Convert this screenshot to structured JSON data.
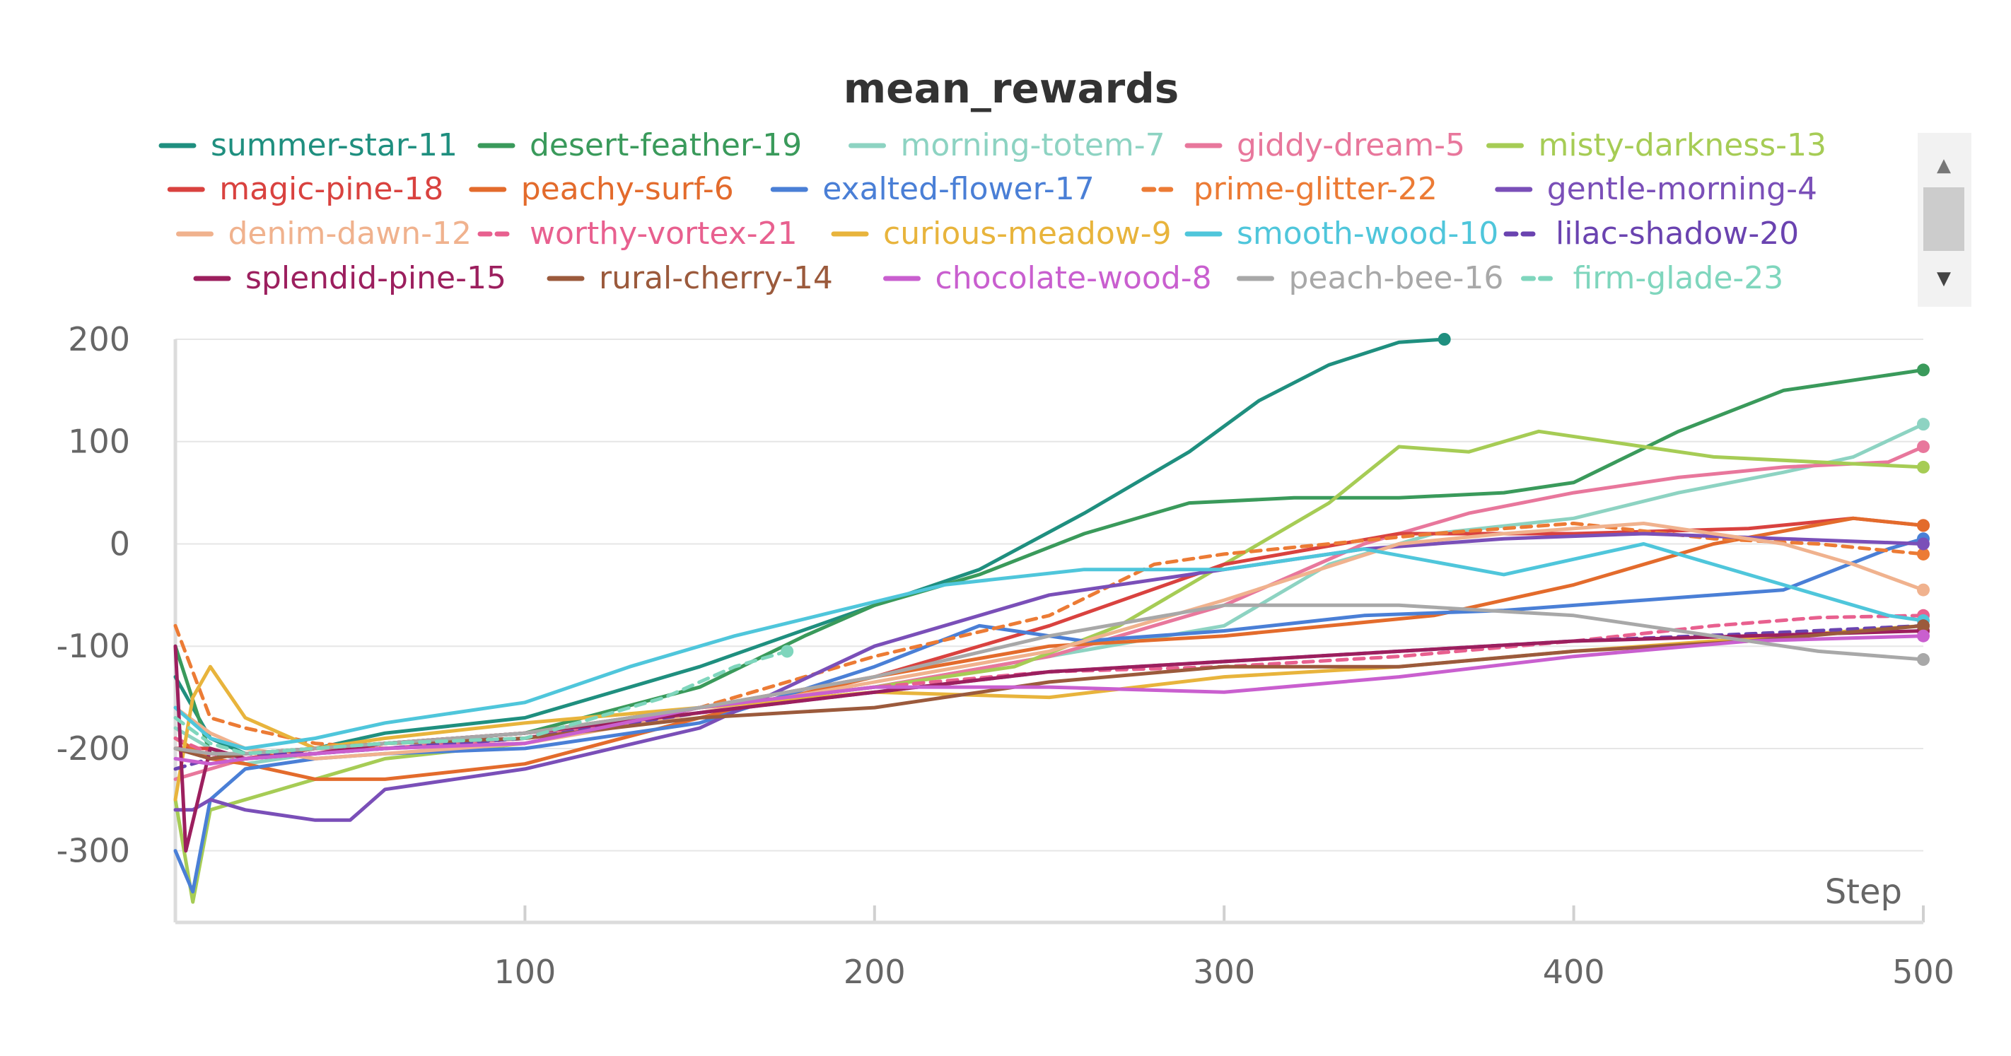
{
  "chart_data": {
    "type": "line",
    "title": "mean_rewards",
    "xlabel": "Step",
    "ylabel": "",
    "xlim": [
      0,
      500
    ],
    "ylim": [
      -370,
      200
    ],
    "xticks": [
      100,
      200,
      300,
      400,
      500
    ],
    "yticks": [
      200,
      100,
      0,
      -100,
      -200,
      -300
    ],
    "grid": true,
    "legend_position": "top",
    "series": [
      {
        "name": "summer-star-11",
        "color": "#1f8f7f",
        "dash": false,
        "x": [
          0,
          10,
          20,
          40,
          60,
          100,
          150,
          175,
          200,
          230,
          260,
          290,
          310,
          330,
          350,
          363
        ],
        "y": [
          -130,
          -190,
          -205,
          -200,
          -185,
          -170,
          -120,
          -90,
          -60,
          -25,
          30,
          90,
          140,
          175,
          197,
          200
        ]
      },
      {
        "name": "desert-feather-19",
        "color": "#3a9a5b",
        "dash": false,
        "x": [
          0,
          10,
          20,
          40,
          60,
          100,
          150,
          180,
          200,
          230,
          260,
          290,
          320,
          350,
          380,
          400,
          430,
          460,
          500
        ],
        "y": [
          -100,
          -205,
          -210,
          -200,
          -195,
          -185,
          -140,
          -90,
          -60,
          -30,
          10,
          40,
          45,
          45,
          50,
          60,
          110,
          150,
          170
        ]
      },
      {
        "name": "morning-totem-7",
        "color": "#8dd3c2",
        "dash": false,
        "x": [
          0,
          10,
          20,
          40,
          60,
          100,
          150,
          200,
          250,
          300,
          330,
          360,
          400,
          430,
          460,
          480,
          500
        ],
        "y": [
          -180,
          -200,
          -215,
          -205,
          -200,
          -190,
          -160,
          -140,
          -110,
          -80,
          -20,
          10,
          25,
          50,
          70,
          85,
          117
        ]
      },
      {
        "name": "giddy-dream-5",
        "color": "#e8779c",
        "dash": false,
        "x": [
          0,
          10,
          20,
          40,
          60,
          100,
          150,
          200,
          250,
          300,
          340,
          370,
          400,
          430,
          460,
          490,
          500
        ],
        "y": [
          -230,
          -220,
          -210,
          -200,
          -200,
          -190,
          -160,
          -140,
          -110,
          -60,
          0,
          30,
          50,
          65,
          75,
          80,
          95
        ]
      },
      {
        "name": "misty-darkness-13",
        "color": "#a6cc55",
        "dash": false,
        "x": [
          0,
          5,
          10,
          20,
          40,
          60,
          100,
          150,
          200,
          240,
          270,
          300,
          330,
          350,
          370,
          390,
          420,
          440,
          470,
          500
        ],
        "y": [
          -250,
          -350,
          -260,
          -250,
          -230,
          -210,
          -195,
          -160,
          -140,
          -120,
          -80,
          -20,
          40,
          95,
          90,
          110,
          95,
          85,
          80,
          75
        ]
      },
      {
        "name": "magic-pine-18",
        "color": "#d9423f",
        "dash": false,
        "x": [
          0,
          10,
          20,
          40,
          60,
          100,
          150,
          200,
          250,
          300,
          350,
          400,
          450,
          480,
          500
        ],
        "y": [
          -200,
          -200,
          -210,
          -200,
          -195,
          -185,
          -160,
          -130,
          -80,
          -20,
          10,
          10,
          15,
          25,
          18
        ]
      },
      {
        "name": "peachy-surf-6",
        "color": "#e36b2c",
        "dash": false,
        "x": [
          0,
          10,
          20,
          40,
          60,
          100,
          150,
          200,
          250,
          300,
          330,
          360,
          400,
          440,
          480,
          500
        ],
        "y": [
          -190,
          -210,
          -215,
          -230,
          -230,
          -215,
          -170,
          -130,
          -100,
          -90,
          -80,
          -70,
          -40,
          0,
          25,
          18
        ]
      },
      {
        "name": "exalted-flower-17",
        "color": "#4a7fd6",
        "dash": false,
        "x": [
          0,
          5,
          10,
          20,
          40,
          60,
          100,
          150,
          200,
          230,
          260,
          300,
          340,
          380,
          420,
          460,
          490,
          500
        ],
        "y": [
          -300,
          -340,
          -250,
          -220,
          -210,
          -205,
          -200,
          -175,
          -120,
          -80,
          -95,
          -85,
          -70,
          -65,
          -55,
          -45,
          -5,
          5
        ]
      },
      {
        "name": "prime-glitter-22",
        "color": "#ec7b35",
        "dash": true,
        "x": [
          0,
          10,
          20,
          40,
          60,
          100,
          150,
          200,
          250,
          280,
          300,
          330,
          360,
          400,
          440,
          470,
          500
        ],
        "y": [
          -80,
          -170,
          -180,
          -195,
          -200,
          -195,
          -160,
          -110,
          -70,
          -20,
          -10,
          0,
          10,
          20,
          5,
          0,
          -10
        ]
      },
      {
        "name": "gentle-morning-4",
        "color": "#7a4fb8",
        "dash": false,
        "x": [
          0,
          5,
          10,
          20,
          40,
          50,
          60,
          100,
          150,
          200,
          250,
          300,
          340,
          380,
          420,
          460,
          500
        ],
        "y": [
          -260,
          -260,
          -250,
          -260,
          -270,
          -270,
          -240,
          -220,
          -180,
          -100,
          -50,
          -25,
          -5,
          5,
          10,
          5,
          0
        ]
      },
      {
        "name": "denim-dawn-12",
        "color": "#f0b28e",
        "dash": false,
        "x": [
          0,
          10,
          20,
          40,
          60,
          100,
          150,
          200,
          250,
          300,
          350,
          380,
          420,
          460,
          480,
          500
        ],
        "y": [
          -160,
          -185,
          -200,
          -210,
          -205,
          -195,
          -165,
          -135,
          -105,
          -55,
          0,
          10,
          20,
          0,
          -20,
          -45
        ]
      },
      {
        "name": "worthy-vortex-21",
        "color": "#e8608f",
        "dash": true,
        "x": [
          0,
          10,
          20,
          40,
          60,
          100,
          150,
          200,
          250,
          300,
          350,
          400,
          440,
          470,
          500
        ],
        "y": [
          -190,
          -205,
          -210,
          -205,
          -200,
          -190,
          -160,
          -140,
          -125,
          -120,
          -110,
          -95,
          -80,
          -72,
          -70
        ]
      },
      {
        "name": "curious-meadow-9",
        "color": "#e8b43c",
        "dash": false,
        "x": [
          0,
          5,
          10,
          20,
          40,
          60,
          100,
          150,
          200,
          250,
          300,
          350,
          400,
          440,
          480,
          500
        ],
        "y": [
          -250,
          -150,
          -120,
          -170,
          -200,
          -190,
          -175,
          -160,
          -145,
          -150,
          -130,
          -120,
          -105,
          -95,
          -85,
          -80
        ]
      },
      {
        "name": "smooth-wood-10",
        "color": "#4fc6db",
        "dash": false,
        "x": [
          0,
          10,
          20,
          40,
          60,
          100,
          130,
          160,
          190,
          220,
          260,
          300,
          340,
          380,
          420,
          460,
          490,
          500
        ],
        "y": [
          -160,
          -190,
          -200,
          -190,
          -175,
          -155,
          -120,
          -90,
          -65,
          -40,
          -25,
          -25,
          -5,
          -30,
          0,
          -40,
          -70,
          -75
        ]
      },
      {
        "name": "lilac-shadow-20",
        "color": "#6a43b0",
        "dash": true,
        "x": [
          0,
          10,
          20,
          40,
          60,
          100,
          150,
          200,
          250,
          300,
          350,
          400,
          450,
          500
        ],
        "y": [
          -220,
          -210,
          -205,
          -205,
          -200,
          -190,
          -165,
          -145,
          -125,
          -115,
          -105,
          -95,
          -88,
          -80
        ]
      },
      {
        "name": "splendid-pine-15",
        "color": "#9c1f5e",
        "dash": false,
        "x": [
          0,
          3,
          10,
          20,
          40,
          60,
          100,
          150,
          200,
          250,
          300,
          350,
          400,
          450,
          500
        ],
        "y": [
          -100,
          -300,
          -200,
          -210,
          -205,
          -195,
          -185,
          -165,
          -145,
          -125,
          -115,
          -105,
          -95,
          -90,
          -85
        ]
      },
      {
        "name": "rural-cherry-14",
        "color": "#9b5a3c",
        "dash": false,
        "x": [
          0,
          10,
          20,
          40,
          60,
          100,
          150,
          200,
          250,
          300,
          350,
          400,
          450,
          500
        ],
        "y": [
          -200,
          -210,
          -205,
          -200,
          -195,
          -190,
          -170,
          -160,
          -135,
          -120,
          -120,
          -105,
          -95,
          -80
        ]
      },
      {
        "name": "chocolate-wood-8",
        "color": "#c95fcf",
        "dash": false,
        "x": [
          0,
          10,
          20,
          40,
          60,
          100,
          150,
          200,
          250,
          300,
          350,
          400,
          450,
          500
        ],
        "y": [
          -210,
          -215,
          -210,
          -205,
          -200,
          -195,
          -160,
          -140,
          -140,
          -145,
          -130,
          -110,
          -95,
          -90
        ]
      },
      {
        "name": "peach-bee-16",
        "color": "#a8a8a8",
        "dash": false,
        "x": [
          0,
          10,
          20,
          40,
          60,
          100,
          150,
          200,
          250,
          300,
          350,
          400,
          440,
          470,
          500
        ],
        "y": [
          -200,
          -205,
          -205,
          -200,
          -195,
          -185,
          -160,
          -130,
          -90,
          -60,
          -60,
          -70,
          -90,
          -105,
          -113
        ]
      },
      {
        "name": "firm-glade-23",
        "color": "#7fd6bd",
        "dash": true,
        "x": [
          0,
          10,
          20,
          40,
          60,
          100,
          140,
          160,
          175
        ],
        "y": [
          -170,
          -195,
          -205,
          -200,
          -195,
          -190,
          -150,
          -120,
          -105
        ]
      }
    ]
  },
  "scrollbar": {
    "up": "▲",
    "down": "▼"
  }
}
